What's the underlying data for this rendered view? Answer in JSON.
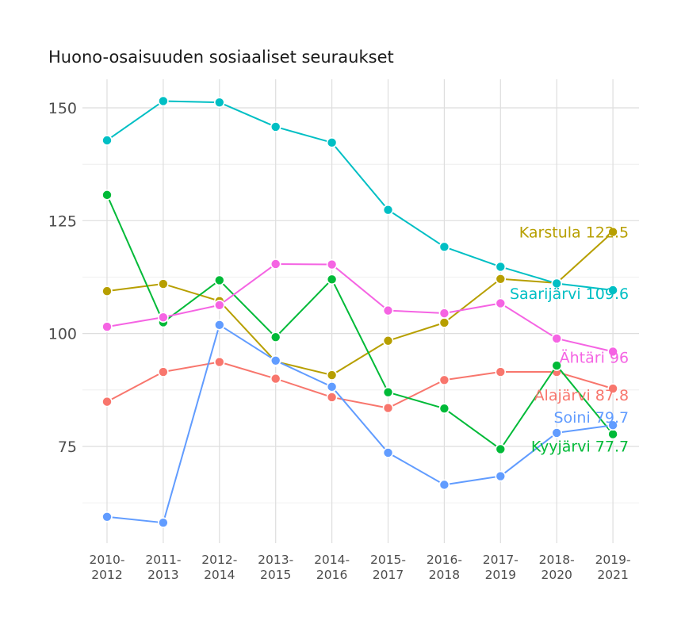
{
  "chart_data": {
    "type": "line",
    "title": "Huono-osaisuuden sosiaaliset seuraukset",
    "xlabel": "",
    "ylabel": "",
    "categories": [
      [
        "2010-",
        "2012"
      ],
      [
        "2011-",
        "2013"
      ],
      [
        "2012-",
        "2014"
      ],
      [
        "2013-",
        "2015"
      ],
      [
        "2014-",
        "2016"
      ],
      [
        "2015-",
        "2017"
      ],
      [
        "2016-",
        "2018"
      ],
      [
        "2017-",
        "2019"
      ],
      [
        "2018-",
        "2020"
      ],
      [
        "2019-",
        "2021"
      ]
    ],
    "ylim": [
      56,
      158
    ],
    "yticks": [
      75,
      100,
      125,
      150
    ],
    "grid": true,
    "series": [
      {
        "name": "Alajärvi",
        "end_label": "Alajärvi 87.8",
        "color": "#F8766D",
        "values": [
          84.9,
          91.5,
          93.7,
          90.0,
          85.9,
          83.5,
          89.7,
          91.5,
          91.5,
          87.8
        ]
      },
      {
        "name": "Karstula",
        "end_label": "Karstula 122.5",
        "color": "#B79F00",
        "values": [
          109.4,
          111.0,
          107.2,
          93.8,
          90.8,
          98.4,
          102.4,
          112.1,
          111.2,
          122.5
        ]
      },
      {
        "name": "Kyyjärvi",
        "end_label": "Kyyjärvi 77.7",
        "color": "#00BA38",
        "values": [
          130.7,
          102.5,
          111.8,
          99.2,
          112.0,
          87.0,
          83.4,
          74.4,
          92.9,
          77.7
        ]
      },
      {
        "name": "Saarijärvi",
        "end_label": "Saarijärvi 109.6",
        "color": "#00BFC4",
        "values": [
          142.8,
          151.5,
          151.2,
          145.8,
          142.3,
          127.4,
          119.2,
          114.8,
          111.1,
          109.6
        ]
      },
      {
        "name": "Soini",
        "end_label": "Soini 79.7",
        "color": "#619CFF",
        "values": [
          59.4,
          58.1,
          101.9,
          94.0,
          88.2,
          73.6,
          66.5,
          68.4,
          78.0,
          79.7
        ]
      },
      {
        "name": "Ähtäri",
        "end_label": "Ähtäri 96",
        "color": "#F564E3",
        "values": [
          101.5,
          103.6,
          106.3,
          115.4,
          115.3,
          105.1,
          104.5,
          106.7,
          98.9,
          96.0
        ]
      }
    ]
  }
}
